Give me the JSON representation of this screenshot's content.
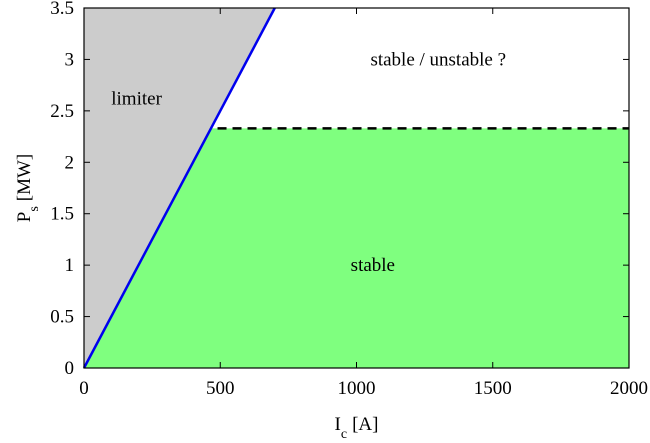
{
  "chart_data": {
    "type": "area",
    "xlabel_main": "I",
    "xlabel_sub": "c",
    "xlabel_unit": "[A]",
    "ylabel_main": "P",
    "ylabel_sub": "s",
    "ylabel_unit": "[MW]",
    "xlim": [
      0,
      2000
    ],
    "ylim": [
      0,
      3.5
    ],
    "x_ticks": [
      0,
      500,
      1000,
      1500,
      2000
    ],
    "y_ticks": [
      0,
      0.5,
      1,
      1.5,
      2,
      2.5,
      3,
      3.5
    ],
    "x_tick_labels": [
      "0",
      "500",
      "1000",
      "1500",
      "2000"
    ],
    "y_tick_labels": [
      "0",
      "0.5",
      "1",
      "1.5",
      "2",
      "2.5",
      "3",
      "3.5"
    ],
    "grid": false,
    "limiter_line": {
      "x": [
        0,
        700
      ],
      "y": [
        0,
        3.5
      ],
      "color": "#0000ee"
    },
    "stability_threshold": {
      "x": [
        490,
        2000
      ],
      "y": [
        2.33,
        2.33
      ],
      "style": "dashed",
      "color": "#000000"
    },
    "regions": [
      {
        "label": "limiter",
        "color": "#cccccc",
        "polygon": [
          [
            0,
            0
          ],
          [
            0,
            3.5
          ],
          [
            700,
            3.5
          ]
        ],
        "label_pos": [
          100,
          2.62
        ]
      },
      {
        "label": "stable",
        "color": "#7fff7f",
        "polygon": [
          [
            0,
            0
          ],
          [
            466,
            2.33
          ],
          [
            2000,
            2.33
          ],
          [
            2000,
            0
          ]
        ],
        "label_pos": [
          1060,
          1.0
        ]
      },
      {
        "label": "stable / unstable ?",
        "color": "#ffffff",
        "polygon": [],
        "label_pos": [
          1300,
          3.0
        ]
      }
    ]
  }
}
